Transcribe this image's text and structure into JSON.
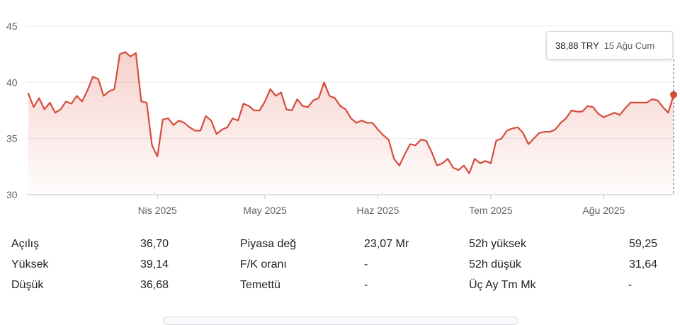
{
  "chart_data": {
    "type": "area",
    "currency": "TRY",
    "ylim": [
      30,
      45
    ],
    "yticks": [
      "30",
      "35",
      "40",
      "45"
    ],
    "xlabels": [
      "Nis 2025",
      "May 2025",
      "Haz 2025",
      "Tem 2025",
      "Ağu 2025"
    ],
    "grid": true,
    "line_color": "#d64c3c",
    "values": [
      39.0,
      37.8,
      38.6,
      37.6,
      38.2,
      37.3,
      37.6,
      38.3,
      38.1,
      38.8,
      38.3,
      39.3,
      40.5,
      40.3,
      38.8,
      39.2,
      39.4,
      42.5,
      42.7,
      42.3,
      42.6,
      38.3,
      38.2,
      34.4,
      33.4,
      36.7,
      36.8,
      36.2,
      36.6,
      36.4,
      36.0,
      35.7,
      35.7,
      37.0,
      36.6,
      35.4,
      35.8,
      36.0,
      36.8,
      36.6,
      38.1,
      37.9,
      37.5,
      37.5,
      38.3,
      39.4,
      38.8,
      39.1,
      37.6,
      37.5,
      38.5,
      37.9,
      37.8,
      38.4,
      38.6,
      40.0,
      38.8,
      38.6,
      37.9,
      37.6,
      36.8,
      36.4,
      36.6,
      36.4,
      36.4,
      35.8,
      35.3,
      34.9,
      33.2,
      32.6,
      33.6,
      34.5,
      34.4,
      34.9,
      34.8,
      33.8,
      32.6,
      32.8,
      33.2,
      32.4,
      32.2,
      32.6,
      31.9,
      33.2,
      32.8,
      33.0,
      32.8,
      34.8,
      35.0,
      35.7,
      35.9,
      36.0,
      35.5,
      34.5,
      35.0,
      35.5,
      35.6,
      35.6,
      35.8,
      36.4,
      36.8,
      37.5,
      37.4,
      37.4,
      37.9,
      37.8,
      37.2,
      36.9,
      37.1,
      37.3,
      37.1,
      37.7,
      38.2,
      38.2,
      38.2,
      38.2,
      38.5,
      38.4,
      37.8,
      37.3,
      38.9
    ],
    "last": {
      "price": "38,88 TRY",
      "date": "15 Ağu Cum"
    }
  },
  "stats": [
    {
      "label": "Açılış",
      "value": "36,70"
    },
    {
      "label": "Yüksek",
      "value": "39,14"
    },
    {
      "label": "Düşük",
      "value": "36,68"
    },
    {
      "label": "Piyasa değ",
      "value": "23,07 Mr"
    },
    {
      "label": "F/K oranı",
      "value": "-"
    },
    {
      "label": "Temettü",
      "value": "-"
    },
    {
      "label": "52h yüksek",
      "value": "59,25"
    },
    {
      "label": "52h düşük",
      "value": "31,64"
    },
    {
      "label": "Üç Ay Tm Mk",
      "value": "-"
    }
  ]
}
